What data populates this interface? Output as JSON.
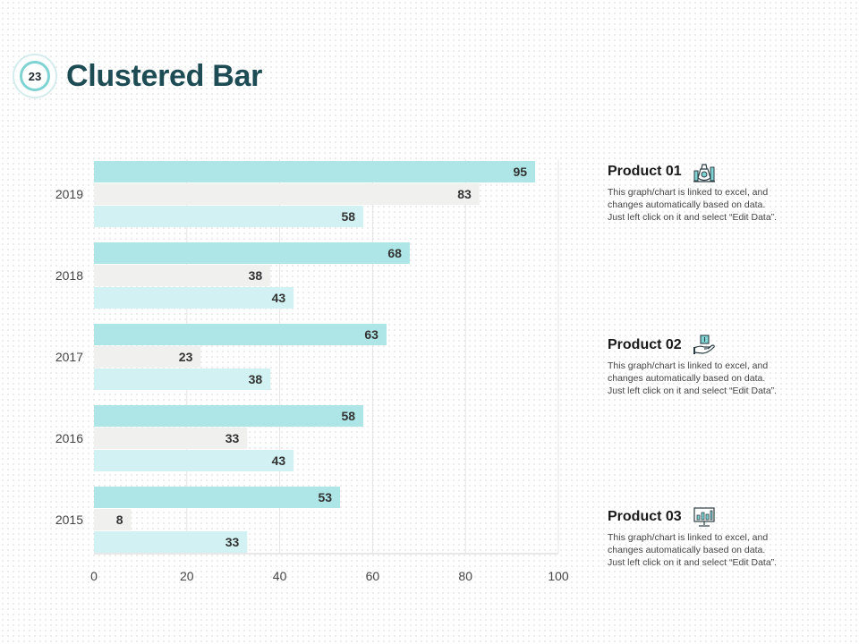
{
  "header": {
    "badge": "23",
    "title": "Clustered Bar"
  },
  "colors": {
    "series1": "#aee5e6",
    "series2": "#f0f0ef",
    "series3": "#d2f1f2",
    "accent": "#7fd3d3",
    "title": "#1e4c55"
  },
  "chart_data": {
    "type": "bar",
    "orientation": "horizontal",
    "title": "",
    "xlabel": "",
    "ylabel": "",
    "categories": [
      "2019",
      "2018",
      "2017",
      "2016",
      "2015"
    ],
    "series": [
      {
        "name": "Product 01",
        "values": [
          95,
          68,
          63,
          58,
          53
        ]
      },
      {
        "name": "Product 02",
        "values": [
          83,
          38,
          23,
          33,
          8
        ]
      },
      {
        "name": "Product 03",
        "values": [
          58,
          43,
          38,
          43,
          33
        ]
      }
    ],
    "xlim": [
      0,
      100
    ],
    "ticks": [
      0,
      20,
      40,
      60,
      80,
      100
    ],
    "grid": true
  },
  "products": [
    {
      "title": "Product 01",
      "icon": "money-bag-chart-icon",
      "desc_lines": [
        "This graph/chart is linked to excel, and",
        "changes automatically based on data.",
        "Just left click on it and select “Edit Data”."
      ]
    },
    {
      "title": "Product 02",
      "icon": "hand-money-icon",
      "desc_lines": [
        "This graph/chart is linked to excel, and",
        "changes automatically based on data.",
        "Just left click on it and select “Edit Data”."
      ]
    },
    {
      "title": "Product 03",
      "icon": "monitor-chart-icon",
      "desc_lines": [
        "This graph/chart is linked to excel, and",
        "changes automatically based on data.",
        "Just left click on it and select “Edit Data”."
      ]
    }
  ]
}
